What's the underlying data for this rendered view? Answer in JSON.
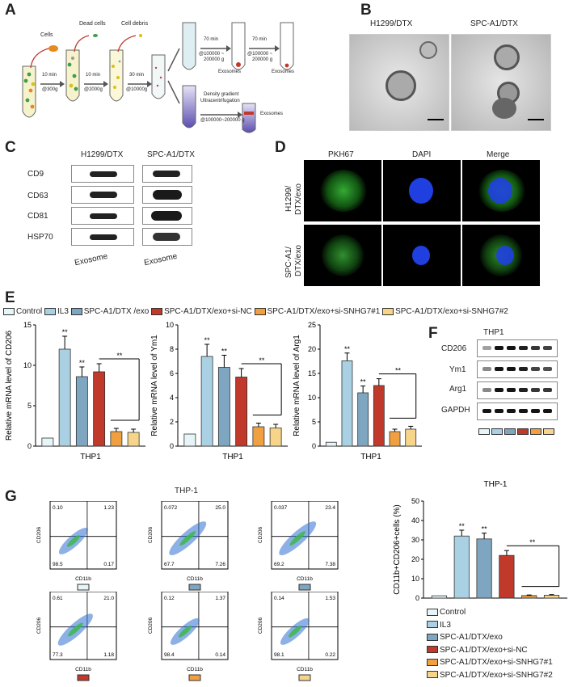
{
  "colors": {
    "control": "#e6f6f8",
    "il3": "#a9d1e3",
    "exo": "#7ea6c0",
    "sinc": "#c0392b",
    "si1": "#f0a040",
    "si2": "#f6d58a"
  },
  "panelA": {
    "label": "A",
    "cells": "Cells",
    "dead": "Dead cells",
    "debris": "Cell debris",
    "t1": "10 min",
    "g1": "@300g",
    "t2": "10 min",
    "g2": "@2000g",
    "t3": "30 min",
    "g3": "@10000g",
    "t4": "70 min",
    "g4a": "@100000 ~",
    "g4b": "200000 g",
    "t5": "70 min",
    "g5a": "@100000 ~",
    "g5b": "200000 g",
    "exo1": "Exosomes",
    "exo2": "Exosomes",
    "exo3": "Exosomes",
    "density1": "Density gradient",
    "density2": "Ultracentrifugation",
    "density3": "@100000~200000 g"
  },
  "panelB": {
    "label": "B",
    "c1": "H1299/DTX",
    "c2": "SPC-A1/DTX"
  },
  "panelC": {
    "label": "C",
    "c1": "H1299/DTX",
    "c2": "SPC-A1/DTX",
    "rows": [
      "CD9",
      "CD63",
      "CD81",
      "HSP70"
    ],
    "foot1": "Exosome",
    "foot2": "Exosome"
  },
  "panelD": {
    "label": "D",
    "h1": "PKH67",
    "h2": "DAPI",
    "h3": "Merge",
    "r1a": "H1299/",
    "r1b": "DTX/exo",
    "r2a": "SPC-A1/",
    "r2b": "DTX/exo"
  },
  "panelE": {
    "label": "E",
    "legend": [
      "Control",
      "IL3",
      "SPC-A1/DTX /exo",
      "SPC-A1/DTX/exo+si-NC",
      "SPC-A1/DTX/exo+si-SNHG7#1",
      "SPC-A1/DTX/exo+si-SNHG7#2"
    ],
    "sig": "**"
  },
  "panelF": {
    "label": "F",
    "title": "THP1",
    "rows": [
      "CD206",
      "Ym1",
      "Arg1",
      "GAPDH"
    ]
  },
  "panelG": {
    "label": "G",
    "flow_title": "THP-1",
    "xaxis": "CD11b",
    "yaxis": "CD206",
    "quads": [
      [
        "0.10",
        "1.23",
        "98.5",
        "0.17"
      ],
      [
        "0.072",
        "25.0",
        "67.7",
        "7.26"
      ],
      [
        "0.037",
        "23.4",
        "69.2",
        "7.38"
      ],
      [
        "0.61",
        "21.0",
        "77.3",
        "1.18"
      ],
      [
        "0.12",
        "1.37",
        "98.4",
        "0.14"
      ],
      [
        "0.14",
        "1.53",
        "98.1",
        "0.22"
      ]
    ],
    "legend": [
      "Control",
      "IL3",
      "SPC-A1/DTX/exo",
      "SPC-A1/DTX/exo+si-NC",
      "SPC-A1/DTX/exo+si-SNHG7#1",
      "SPC-A1/DTX/exo+si-SNHG7#2"
    ]
  },
  "chart_data": [
    {
      "type": "bar",
      "categories": [
        "Control",
        "IL3",
        "SPC-A1/DTX /exo",
        "SPC-A1/DTX/exo+si-NC",
        "SPC-A1/DTX/exo+si-SNHG7#1",
        "SPC-A1/DTX/exo+si-SNHG7#2"
      ],
      "values": [
        1.0,
        12.0,
        8.6,
        9.2,
        1.8,
        1.7
      ],
      "errors": [
        0,
        1.6,
        1.2,
        1.0,
        0.4,
        0.4
      ],
      "ylabel": "Relative mRNA level of CD206",
      "xlabel": "THP1",
      "ylim": [
        0,
        15
      ],
      "yticks": [
        "0",
        "5",
        "10",
        "15"
      ]
    },
    {
      "type": "bar",
      "categories": [
        "Control",
        "IL3",
        "SPC-A1/DTX /exo",
        "SPC-A1/DTX/exo+si-NC",
        "SPC-A1/DTX/exo+si-SNHG7#1",
        "SPC-A1/DTX/exo+si-SNHG7#2"
      ],
      "values": [
        1.0,
        7.4,
        6.5,
        5.7,
        1.6,
        1.5
      ],
      "errors": [
        0,
        1.0,
        1.0,
        0.7,
        0.3,
        0.3
      ],
      "ylabel": "Relative mRNA level of Ym1",
      "xlabel": "THP1",
      "ylim": [
        0,
        10
      ],
      "yticks": [
        "0",
        "2",
        "4",
        "6",
        "8",
        "10"
      ]
    },
    {
      "type": "bar",
      "categories": [
        "Control",
        "IL3",
        "SPC-A1/DTX /exo",
        "SPC-A1/DTX/exo+si-NC",
        "SPC-A1/DTX/exo+si-SNHG7#1",
        "SPC-A1/DTX/exo+si-SNHG7#2"
      ],
      "values": [
        0.8,
        17.6,
        11.0,
        12.5,
        3.0,
        3.5
      ],
      "errors": [
        0,
        1.6,
        1.4,
        1.4,
        0.5,
        0.6
      ],
      "ylabel": "Relative mRNA level of Arg1",
      "xlabel": "THP1",
      "ylim": [
        0,
        25
      ],
      "yticks": [
        "0",
        "5",
        "10",
        "15",
        "20",
        "25"
      ]
    },
    {
      "type": "bar",
      "categories": [
        "Control",
        "IL3",
        "SPC-A1/DTX/exo",
        "SPC-A1/DTX/exo+si-NC",
        "SPC-A1/DTX/exo+si-SNHG7#1",
        "SPC-A1/DTX/exo+si-SNHG7#2"
      ],
      "values": [
        1.2,
        32.0,
        30.5,
        22.0,
        1.3,
        1.5
      ],
      "errors": [
        0,
        3.0,
        3.0,
        2.5,
        0.3,
        0.3
      ],
      "title": "THP-1",
      "ylabel": "CD11b+CD206+cells (%)",
      "ylim": [
        0,
        50
      ],
      "yticks": [
        "0",
        "10",
        "20",
        "30",
        "40",
        "50"
      ]
    }
  ]
}
